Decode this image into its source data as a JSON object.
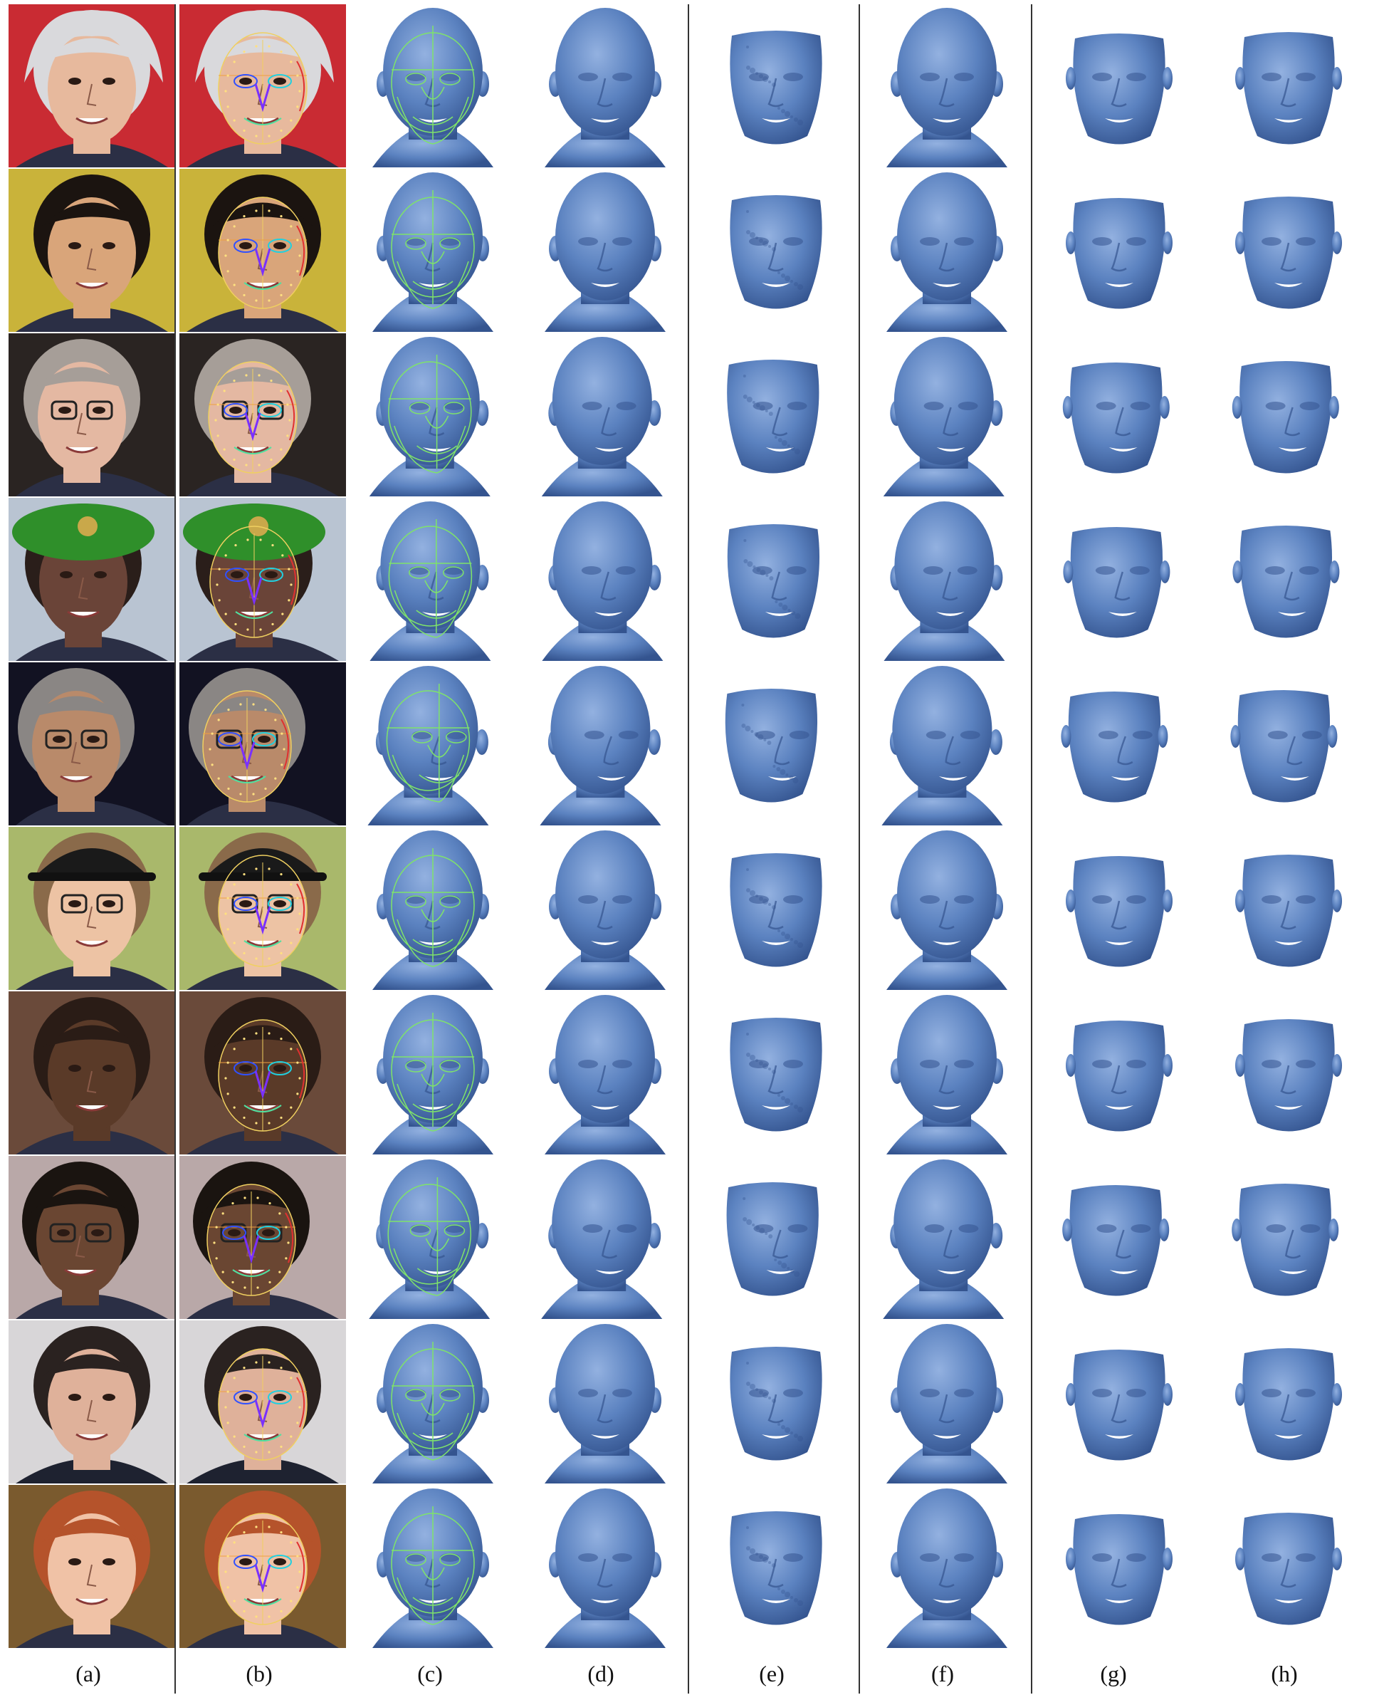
{
  "figure": {
    "column_labels": [
      "(a)",
      "(b)",
      "(c)",
      "(d)",
      "(e)",
      "(f)",
      "(g)",
      "(h)"
    ],
    "rows": 10,
    "colors": {
      "mesh": "#5b82c0",
      "mesh_shadow": "#34548f",
      "mesh_highlight": "#93b1e0",
      "wireframe": "#7fe36a",
      "divider": "#333333"
    },
    "row_subjects": [
      {
        "skin": "#e7b99d",
        "hair": "#d9d9dc",
        "bg": "#c92b33",
        "accessory": "white-wig"
      },
      {
        "skin": "#d9a57a",
        "hair": "#1b1410",
        "bg": "#c9b33a",
        "accessory": "none"
      },
      {
        "skin": "#e4b8a2",
        "hair": "#a69e98",
        "bg": "#2a2422",
        "accessory": "glasses"
      },
      {
        "skin": "#6a4438",
        "hair": "#2a1e1a",
        "bg": "#b9c4d2",
        "accessory": "green-beret"
      },
      {
        "skin": "#b98a6a",
        "hair": "#8a8684",
        "bg": "#121222",
        "accessory": "glasses"
      },
      {
        "skin": "#edc3a4",
        "hair": "#8a6a4a",
        "bg": "#a9b86b",
        "accessory": "black-cap"
      },
      {
        "skin": "#5a3a28",
        "hair": "#2a1c16",
        "bg": "#6a4a3a",
        "accessory": "none"
      },
      {
        "skin": "#6a4632",
        "hair": "#1a1410",
        "bg": "#b9a8a8",
        "accessory": "glasses"
      },
      {
        "skin": "#dfb19a",
        "hair": "#2a2220",
        "bg": "#d8d6d8",
        "accessory": "suit"
      },
      {
        "skin": "#f0c2a6",
        "hair": "#b5532b",
        "bg": "#7a5a2e",
        "accessory": "none"
      }
    ]
  }
}
